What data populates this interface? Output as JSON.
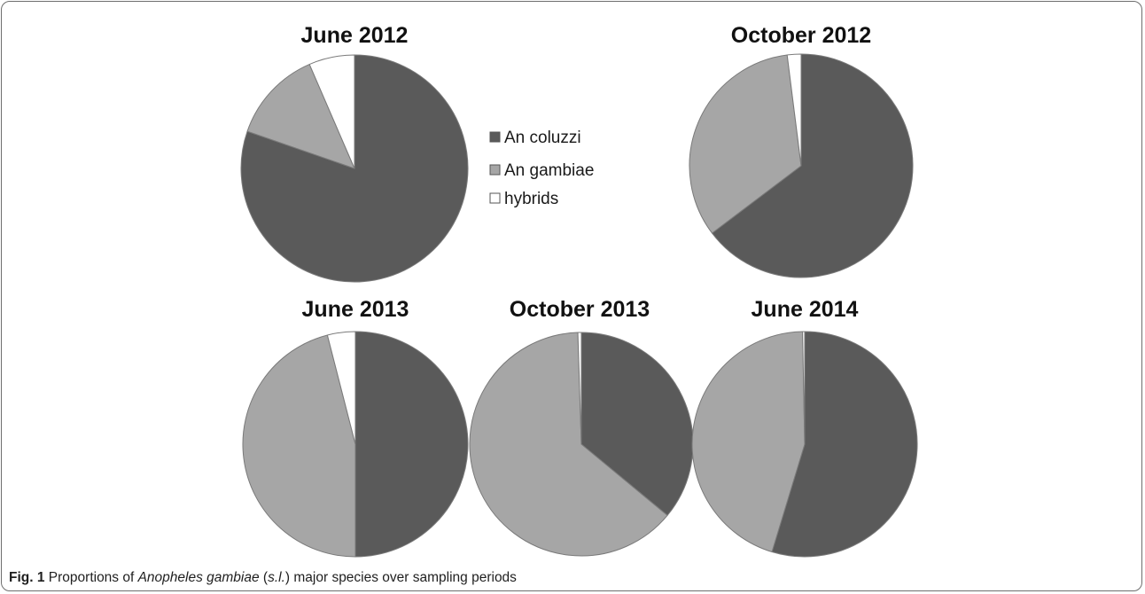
{
  "colors": {
    "An coluzzi": "#5a5a5a",
    "An gambiae": "#a6a6a6",
    "hybrids": "#ffffff",
    "stroke": "#7a7a7a"
  },
  "chart_data": {
    "type": "pie",
    "legend": [
      "An coluzzi",
      "An gambiae",
      "hybrids"
    ],
    "legend_position": "center-top",
    "pies": [
      {
        "title": "June 2012",
        "values": {
          "An coluzzi": 80.3,
          "An gambiae": 13.2,
          "hybrids": 6.5
        }
      },
      {
        "title": "October 2012",
        "values": {
          "An coluzzi": 64.7,
          "An gambiae": 33.3,
          "hybrids": 2.0
        }
      },
      {
        "title": "June 2013",
        "values": {
          "An coluzzi": 50.0,
          "An gambiae": 46.0,
          "hybrids": 4.0
        }
      },
      {
        "title": "October 2013",
        "values": {
          "An coluzzi": 36.0,
          "An gambiae": 63.5,
          "hybrids": 0.5
        }
      },
      {
        "title": "June 2014",
        "values": {
          "An coluzzi": 54.7,
          "An gambiae": 45.0,
          "hybrids": 0.3
        }
      }
    ]
  },
  "caption": {
    "label": "Fig. 1",
    "text_before": " Proportions of ",
    "species": "Anopheles gambiae",
    "text_middle": " (",
    "sl": "s.l.",
    "text_after": ") major species over sampling periods"
  }
}
